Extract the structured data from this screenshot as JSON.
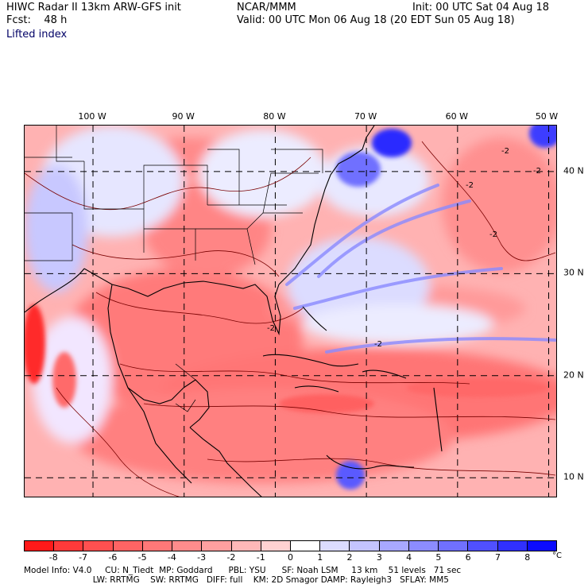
{
  "header": {
    "title": "HIWC Radar II 13km ARW-GFS init",
    "center": "NCAR/MMM",
    "init": "Init: 00 UTC Sat 04 Aug 18",
    "fcst": "Fcst:    48 h",
    "valid": "Valid: 00 UTC Mon 06 Aug 18 (20 EDT Sun 05 Aug 18)",
    "field": "Lifted index"
  },
  "map": {
    "lon_labels": [
      "100 W",
      "90 W",
      "80 W",
      "70 W",
      "60 W",
      "50 W"
    ],
    "lat_labels": [
      "40 N",
      "30 N",
      "20 N",
      "10 N"
    ],
    "lons": [
      -100,
      -90,
      -80,
      -70,
      -60,
      -50
    ],
    "lats": [
      40,
      30,
      20,
      10
    ],
    "extent": {
      "lon_min": -107.5,
      "lon_max": -49.0,
      "lat_min": 8.0,
      "lat_max": 44.5
    },
    "contour_labels": [
      "-2",
      "-2",
      "-2",
      "-2",
      "-2",
      "-2"
    ]
  },
  "colorbar": {
    "labels": [
      "-8",
      "-7",
      "-6",
      "-5",
      "-4",
      "-3",
      "-2",
      "-1",
      "0",
      "1",
      "2",
      "3",
      "4",
      "5",
      "6",
      "7",
      "8"
    ],
    "unit": "°C",
    "colors": [
      "#ff1a1a",
      "#ff3a3a",
      "#ff5050",
      "#ff6464",
      "#ff7878",
      "#ff8c8c",
      "#ffa0a0",
      "#ffb8b8",
      "#ffd2d2",
      "#ffffff",
      "#dcdcff",
      "#c4c4ff",
      "#a8a8ff",
      "#8c8cff",
      "#7070ff",
      "#5050ff",
      "#3030ff",
      "#0c0cff"
    ]
  },
  "info": {
    "line1": "Model Info: V4.0     CU: N_Tiedt  MP: Goddard      PBL: YSU      SF: Noah LSM     13 km    51 levels   71 sec",
    "line2": "                          LW: RRTMG    SW: RRTMG   DIFF: full    KM: 2D Smagor DAMP: Rayleigh3   SFLAY: MM5"
  }
}
